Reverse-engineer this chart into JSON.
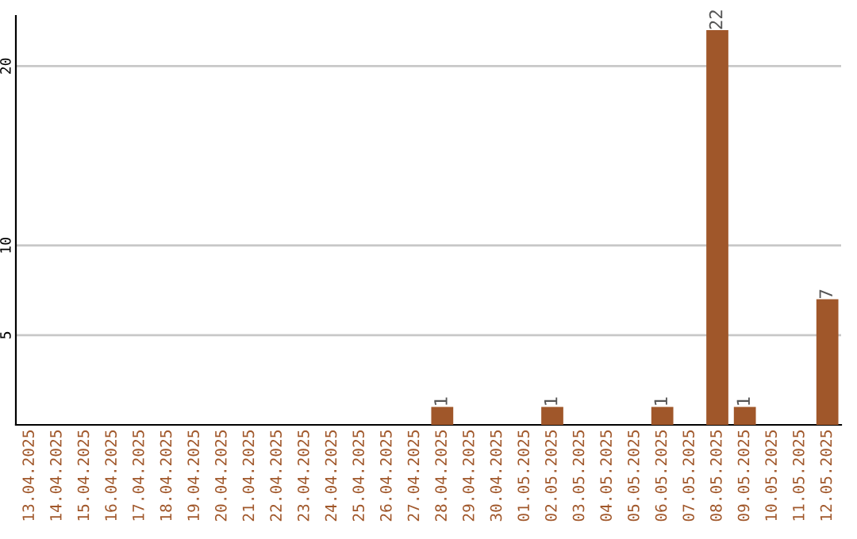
{
  "chart_data": {
    "type": "bar",
    "categories": [
      "13.04.2025",
      "14.04.2025",
      "15.04.2025",
      "16.04.2025",
      "17.04.2025",
      "18.04.2025",
      "19.04.2025",
      "20.04.2025",
      "21.04.2025",
      "22.04.2025",
      "23.04.2025",
      "24.04.2025",
      "25.04.2025",
      "26.04.2025",
      "27.04.2025",
      "28.04.2025",
      "29.04.2025",
      "30.04.2025",
      "01.05.2025",
      "02.05.2025",
      "03.05.2025",
      "04.05.2025",
      "05.05.2025",
      "06.05.2025",
      "07.05.2025",
      "08.05.2025",
      "09.05.2025",
      "10.05.2025",
      "11.05.2025",
      "12.05.2025"
    ],
    "values": [
      0,
      0,
      0,
      0,
      0,
      0,
      0,
      0,
      0,
      0,
      0,
      0,
      0,
      0,
      0,
      1,
      0,
      0,
      0,
      1,
      0,
      0,
      0,
      1,
      0,
      22,
      1,
      0,
      0,
      7
    ],
    "value_labels": [
      null,
      null,
      null,
      null,
      null,
      null,
      null,
      null,
      null,
      null,
      null,
      null,
      null,
      null,
      null,
      "1",
      null,
      null,
      null,
      "1",
      null,
      null,
      null,
      "1",
      null,
      "22",
      "1",
      null,
      null,
      "7"
    ],
    "color": "#a0572a",
    "ylim": [
      0,
      22.8
    ],
    "yticks": [
      5,
      10,
      20
    ],
    "grid": "y",
    "legend": false
  }
}
